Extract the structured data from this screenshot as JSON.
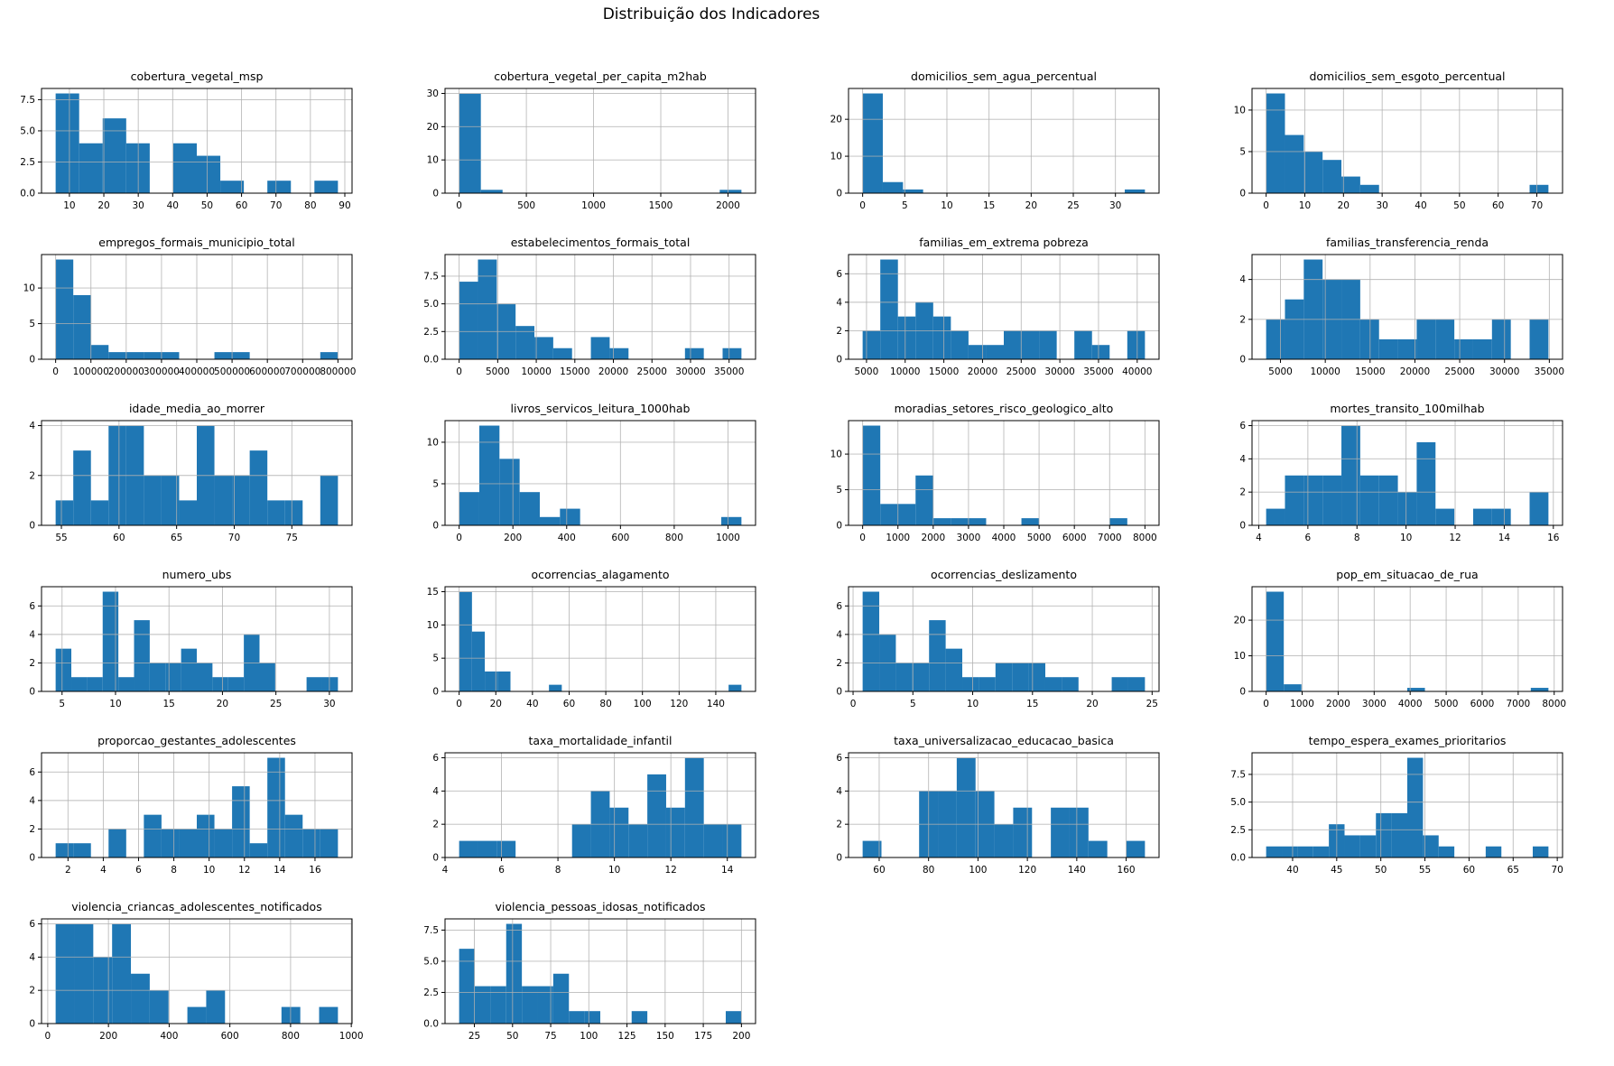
{
  "figure": {
    "title": "Distribuição dos Indicadores",
    "background_color": "#ffffff",
    "bar_color": "#1f77b4",
    "grid_color": "#b0b0b0",
    "spine_color": "#000000",
    "layout": {
      "columns": 4,
      "rows": 6,
      "grid_on": true,
      "legend": "none"
    }
  },
  "chart_data": [
    {
      "type": "histogram",
      "title": "cobertura_vegetal_msp",
      "xlabel": "",
      "ylabel": "",
      "bin_start": 6,
      "bin_end": 88,
      "bin_heights": [
        8,
        4,
        6,
        4,
        0,
        4,
        3,
        1,
        0,
        1,
        0,
        1
      ],
      "xticks": [
        "10",
        "20",
        "30",
        "40",
        "50",
        "60",
        "70",
        "80",
        "90"
      ],
      "yticks": [
        "0.0",
        "2.5",
        "5.0",
        "7.5"
      ]
    },
    {
      "type": "histogram",
      "title": "cobertura_vegetal_per_capita_m2hab",
      "xlabel": "",
      "ylabel": "",
      "bin_start": 0,
      "bin_end": 2100,
      "bin_heights": [
        30,
        1,
        0,
        0,
        0,
        0,
        0,
        0,
        0,
        0,
        0,
        0,
        1
      ],
      "xticks": [
        "0",
        "500",
        "1000",
        "1500",
        "2000"
      ],
      "yticks": [
        "0",
        "10",
        "20",
        "30"
      ]
    },
    {
      "type": "histogram",
      "title": "domicilios_sem_agua_percentual",
      "xlabel": "",
      "ylabel": "",
      "bin_start": 0,
      "bin_end": 33.5,
      "bin_heights": [
        27,
        3,
        1,
        0,
        0,
        0,
        0,
        0,
        0,
        0,
        0,
        0,
        0,
        1
      ],
      "xticks": [
        "0",
        "5",
        "10",
        "15",
        "20",
        "25",
        "30"
      ],
      "yticks": [
        "0",
        "10",
        "20"
      ]
    },
    {
      "type": "histogram",
      "title": "domicilios_sem_esgoto_percentual",
      "xlabel": "",
      "ylabel": "",
      "bin_start": 0,
      "bin_end": 73,
      "bin_heights": [
        12,
        7,
        5,
        4,
        2,
        1,
        0,
        0,
        0,
        0,
        0,
        0,
        0,
        0,
        1
      ],
      "xticks": [
        "0",
        "10",
        "20",
        "30",
        "40",
        "50",
        "60",
        "70"
      ],
      "yticks": [
        "0",
        "5",
        "10"
      ]
    },
    {
      "type": "histogram",
      "title": "empregos_formais_municipio_total",
      "xlabel": "",
      "ylabel": "",
      "bin_start": 0,
      "bin_end": 800000,
      "bin_heights": [
        14,
        9,
        2,
        1,
        1,
        1,
        1,
        0,
        0,
        1,
        1,
        0,
        0,
        0,
        0,
        1
      ],
      "xticks": [
        "0",
        "100000",
        "200000",
        "300000",
        "400000",
        "500000",
        "600000",
        "700000",
        "800000"
      ],
      "yticks": [
        "0",
        "5",
        "10"
      ]
    },
    {
      "type": "histogram",
      "title": "estabelecimentos_formais_total",
      "xlabel": "",
      "ylabel": "",
      "bin_start": 0,
      "bin_end": 36600,
      "bin_heights": [
        7,
        9,
        5,
        3,
        2,
        1,
        0,
        2,
        1,
        0,
        0,
        0,
        1,
        0,
        1
      ],
      "xticks": [
        "0",
        "5000",
        "10000",
        "15000",
        "20000",
        "25000",
        "30000",
        "35000"
      ],
      "yticks": [
        "0.0",
        "2.5",
        "5.0",
        "7.5"
      ]
    },
    {
      "type": "histogram",
      "title": "familias_em_extrema pobreza",
      "xlabel": "",
      "ylabel": "",
      "bin_start": 4500,
      "bin_end": 41000,
      "bin_heights": [
        2,
        7,
        3,
        4,
        3,
        2,
        1,
        1,
        2,
        2,
        2,
        0,
        2,
        1,
        0,
        2
      ],
      "xticks": [
        "5000",
        "10000",
        "15000",
        "20000",
        "25000",
        "30000",
        "35000",
        "40000"
      ],
      "yticks": [
        "0",
        "2",
        "4",
        "6"
      ]
    },
    {
      "type": "histogram",
      "title": "familias_transferencia_renda",
      "xlabel": "",
      "ylabel": "",
      "bin_start": 3400,
      "bin_end": 34900,
      "bin_heights": [
        2,
        3,
        5,
        4,
        4,
        2,
        1,
        1,
        2,
        2,
        1,
        1,
        2,
        0,
        2
      ],
      "xticks": [
        "5000",
        "10000",
        "15000",
        "20000",
        "25000",
        "30000",
        "35000"
      ],
      "yticks": [
        "0",
        "2",
        "4"
      ]
    },
    {
      "type": "histogram",
      "title": "idade_media_ao_morrer",
      "xlabel": "",
      "ylabel": "",
      "bin_start": 54.5,
      "bin_end": 79,
      "bin_heights": [
        1,
        3,
        1,
        4,
        4,
        2,
        2,
        1,
        4,
        2,
        2,
        3,
        1,
        1,
        0,
        2
      ],
      "xticks": [
        "55",
        "60",
        "65",
        "70",
        "75"
      ],
      "yticks": [
        "0",
        "2",
        "4"
      ]
    },
    {
      "type": "histogram",
      "title": "livros_servicos_leitura_1000hab",
      "xlabel": "",
      "ylabel": "",
      "bin_start": 0,
      "bin_end": 1050,
      "bin_heights": [
        4,
        12,
        8,
        4,
        1,
        2,
        0,
        0,
        0,
        0,
        0,
        0,
        0,
        1
      ],
      "xticks": [
        "0",
        "200",
        "400",
        "600",
        "800",
        "1000"
      ],
      "yticks": [
        "0",
        "5",
        "10"
      ]
    },
    {
      "type": "histogram",
      "title": "moradias_setores_risco_geologico_alto",
      "xlabel": "",
      "ylabel": "",
      "bin_start": 0,
      "bin_end": 8000,
      "bin_heights": [
        14,
        3,
        3,
        7,
        1,
        1,
        1,
        0,
        0,
        1,
        0,
        0,
        0,
        0,
        1,
        0
      ],
      "xticks": [
        "0",
        "1000",
        "2000",
        "3000",
        "4000",
        "5000",
        "6000",
        "7000",
        "8000"
      ],
      "yticks": [
        "0",
        "5",
        "10"
      ]
    },
    {
      "type": "histogram",
      "title": "mortes_transito_100milhab",
      "xlabel": "",
      "ylabel": "",
      "bin_start": 4.3,
      "bin_end": 15.8,
      "bin_heights": [
        1,
        3,
        3,
        3,
        6,
        3,
        3,
        2,
        5,
        1,
        0,
        1,
        1,
        0,
        2
      ],
      "xticks": [
        "4",
        "6",
        "8",
        "10",
        "12",
        "14",
        "16"
      ],
      "yticks": [
        "0",
        "2",
        "4",
        "6"
      ]
    },
    {
      "type": "histogram",
      "title": "numero_ubs",
      "xlabel": "",
      "ylabel": "",
      "bin_start": 4.4,
      "bin_end": 30.8,
      "bin_heights": [
        3,
        1,
        1,
        7,
        1,
        5,
        2,
        2,
        3,
        2,
        1,
        1,
        4,
        2,
        0,
        0,
        1,
        1
      ],
      "xticks": [
        "5",
        "10",
        "15",
        "20",
        "25",
        "30"
      ],
      "yticks": [
        "0",
        "2",
        "4",
        "6"
      ]
    },
    {
      "type": "histogram",
      "title": "ocorrencias_alagamento",
      "xlabel": "",
      "ylabel": "",
      "bin_start": 0,
      "bin_end": 154,
      "bin_heights": [
        15,
        9,
        3,
        3,
        0,
        0,
        0,
        1,
        0,
        0,
        0,
        0,
        0,
        0,
        0,
        0,
        0,
        0,
        0,
        0,
        0,
        1
      ],
      "xticks": [
        "0",
        "20",
        "40",
        "60",
        "80",
        "100",
        "120",
        "140"
      ],
      "yticks": [
        "0",
        "5",
        "10",
        "15"
      ]
    },
    {
      "type": "histogram",
      "title": "ocorrencias_deslizamento",
      "xlabel": "",
      "ylabel": "",
      "bin_start": 0.8,
      "bin_end": 24.4,
      "bin_heights": [
        7,
        4,
        2,
        2,
        5,
        3,
        1,
        1,
        2,
        2,
        2,
        1,
        1,
        0,
        0,
        1,
        1
      ],
      "xticks": [
        "0",
        "5",
        "10",
        "15",
        "20",
        "25"
      ],
      "yticks": [
        "0",
        "2",
        "4",
        "6"
      ]
    },
    {
      "type": "histogram",
      "title": "pop_em_situacao_de_rua",
      "xlabel": "",
      "ylabel": "",
      "bin_start": 0,
      "bin_end": 7840,
      "bin_heights": [
        28,
        2,
        0,
        0,
        0,
        0,
        0,
        0,
        1,
        0,
        0,
        0,
        0,
        0,
        0,
        1
      ],
      "xticks": [
        "0",
        "1000",
        "2000",
        "3000",
        "4000",
        "5000",
        "6000",
        "7000",
        "8000"
      ],
      "yticks": [
        "0",
        "10",
        "20"
      ]
    },
    {
      "type": "histogram",
      "title": "proporcao_gestantes_adolescentes",
      "xlabel": "",
      "ylabel": "",
      "bin_start": 1.3,
      "bin_end": 17.3,
      "bin_heights": [
        1,
        1,
        0,
        2,
        0,
        3,
        2,
        2,
        3,
        2,
        5,
        1,
        7,
        3,
        2,
        2
      ],
      "xticks": [
        "2",
        "4",
        "6",
        "8",
        "10",
        "12",
        "14",
        "16"
      ],
      "yticks": [
        "0",
        "2",
        "4",
        "6"
      ]
    },
    {
      "type": "histogram",
      "title": "taxa_mortalidade_infantil",
      "xlabel": "",
      "ylabel": "",
      "bin_start": 4.5,
      "bin_end": 14.5,
      "bin_heights": [
        1,
        1,
        1,
        0,
        0,
        0,
        2,
        4,
        3,
        2,
        5,
        3,
        6,
        2,
        2
      ],
      "xticks": [
        "4",
        "6",
        "8",
        "10",
        "12",
        "14"
      ],
      "yticks": [
        "0",
        "2",
        "4",
        "6"
      ]
    },
    {
      "type": "histogram",
      "title": "taxa_universalizacao_educacao_basica",
      "xlabel": "",
      "ylabel": "",
      "bin_start": 53.3,
      "bin_end": 167.6,
      "bin_heights": [
        1,
        0,
        0,
        4,
        4,
        6,
        4,
        2,
        3,
        0,
        3,
        3,
        1,
        0,
        1
      ],
      "xticks": [
        "60",
        "80",
        "100",
        "120",
        "140",
        "160"
      ],
      "yticks": [
        "0",
        "2",
        "4",
        "6"
      ]
    },
    {
      "type": "histogram",
      "title": "tempo_espera_exames_prioritarios",
      "xlabel": "",
      "ylabel": "",
      "bin_start": 37,
      "bin_end": 69,
      "bin_heights": [
        1,
        1,
        1,
        1,
        3,
        2,
        2,
        4,
        4,
        9,
        2,
        1,
        0,
        0,
        1,
        0,
        0,
        1
      ],
      "xticks": [
        "40",
        "45",
        "50",
        "55",
        "60",
        "65",
        "70"
      ],
      "yticks": [
        "0.0",
        "2.5",
        "5.0",
        "7.5"
      ]
    },
    {
      "type": "histogram",
      "title": "violencia_criancas_adolescentes_notificados",
      "xlabel": "",
      "ylabel": "",
      "bin_start": 26,
      "bin_end": 956,
      "bin_heights": [
        6,
        6,
        4,
        6,
        3,
        2,
        0,
        1,
        2,
        0,
        0,
        0,
        1,
        0,
        1
      ],
      "xticks": [
        "0",
        "200",
        "400",
        "600",
        "800",
        "1000"
      ],
      "yticks": [
        "0",
        "2",
        "4",
        "6"
      ]
    },
    {
      "type": "histogram",
      "title": "violencia_pessoas_idosas_notificados",
      "xlabel": "",
      "ylabel": "",
      "bin_start": 15,
      "bin_end": 200,
      "bin_heights": [
        6,
        3,
        3,
        8,
        3,
        3,
        4,
        1,
        1,
        0,
        0,
        1,
        0,
        0,
        0,
        0,
        0,
        1
      ],
      "xticks": [
        "25",
        "50",
        "75",
        "100",
        "125",
        "150",
        "175",
        "200"
      ],
      "yticks": [
        "0.0",
        "2.5",
        "5.0",
        "7.5"
      ]
    }
  ]
}
